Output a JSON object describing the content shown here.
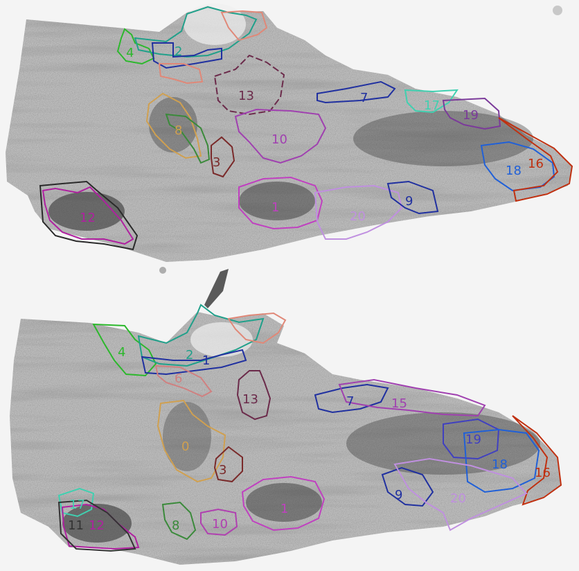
{
  "sections": [
    {
      "labels": [
        {
          "text": "4",
          "color": "#2cb82c"
        },
        {
          "text": "2",
          "color": "#20a08a"
        },
        {
          "text": "13",
          "color": "#6b2a4a"
        },
        {
          "text": "7",
          "color": "#2030a0"
        },
        {
          "text": "17",
          "color": "#40d0b0"
        },
        {
          "text": "19",
          "color": "#7b3a9a"
        },
        {
          "text": "8",
          "color": "#d0a050"
        },
        {
          "text": "10",
          "color": "#a040b0"
        },
        {
          "text": "3",
          "color": "#7a2a2a"
        },
        {
          "text": "18",
          "color": "#2060d8"
        },
        {
          "text": "16",
          "color": "#c03010"
        },
        {
          "text": "12",
          "color": "#b020a0"
        },
        {
          "text": "1",
          "color": "#c040c0"
        },
        {
          "text": "20",
          "color": "#c090e0"
        },
        {
          "text": "9",
          "color": "#2030a0"
        }
      ]
    },
    {
      "labels": [
        {
          "text": "4",
          "color": "#2cb82c"
        },
        {
          "text": "2",
          "color": "#20a08a"
        },
        {
          "text": "1",
          "color": "#2030a0"
        },
        {
          "text": "6",
          "color": "#d08080"
        },
        {
          "text": "13",
          "color": "#6b2a4a"
        },
        {
          "text": "7",
          "color": "#2030a0"
        },
        {
          "text": "15",
          "color": "#a040b0"
        },
        {
          "text": "0",
          "color": "#d0a050"
        },
        {
          "text": "19",
          "color": "#4040c0"
        },
        {
          "text": "18",
          "color": "#2060d8"
        },
        {
          "text": "16",
          "color": "#c03010"
        },
        {
          "text": "3",
          "color": "#7a2a2a"
        },
        {
          "text": "9",
          "color": "#2030a0"
        },
        {
          "text": "20",
          "color": "#c090e0"
        },
        {
          "text": "1",
          "color": "#c040c0"
        },
        {
          "text": "10",
          "color": "#b040b0"
        },
        {
          "text": "8",
          "color": "#3a8a3a"
        },
        {
          "text": "17",
          "color": "#40d0b0"
        },
        {
          "text": "12",
          "color": "#b020a0"
        },
        {
          "text": "11",
          "color": "#333333"
        }
      ]
    }
  ]
}
